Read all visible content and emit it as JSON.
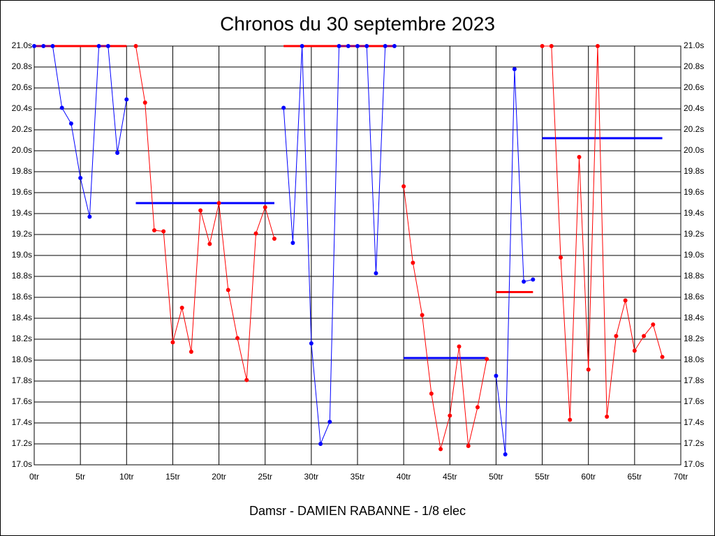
{
  "chart_data": {
    "type": "line",
    "title": "Chronos du 30 septembre 2023",
    "subtitle": "Damsr - DAMIEN RABANNE - 1/8 elec",
    "xlim": [
      0,
      70
    ],
    "ylim": [
      17.0,
      21.0
    ],
    "xticks": [
      {
        "value": 0,
        "label": "0tr"
      },
      {
        "value": 5,
        "label": "5tr"
      },
      {
        "value": 10,
        "label": "10tr"
      },
      {
        "value": 15,
        "label": "15tr"
      },
      {
        "value": 20,
        "label": "20tr"
      },
      {
        "value": 25,
        "label": "25tr"
      },
      {
        "value": 30,
        "label": "30tr"
      },
      {
        "value": 35,
        "label": "35tr"
      },
      {
        "value": 40,
        "label": "40tr"
      },
      {
        "value": 45,
        "label": "45tr"
      },
      {
        "value": 50,
        "label": "50tr"
      },
      {
        "value": 55,
        "label": "55tr"
      },
      {
        "value": 60,
        "label": "60tr"
      },
      {
        "value": 65,
        "label": "65tr"
      },
      {
        "value": 70,
        "label": "70tr"
      }
    ],
    "yticks": [
      {
        "value": 17.0,
        "label": "17.0s"
      },
      {
        "value": 17.2,
        "label": "17.2s"
      },
      {
        "value": 17.4,
        "label": "17.4s"
      },
      {
        "value": 17.6,
        "label": "17.6s"
      },
      {
        "value": 17.8,
        "label": "17.8s"
      },
      {
        "value": 18.0,
        "label": "18.0s"
      },
      {
        "value": 18.2,
        "label": "18.2s"
      },
      {
        "value": 18.4,
        "label": "18.4s"
      },
      {
        "value": 18.6,
        "label": "18.6s"
      },
      {
        "value": 18.8,
        "label": "18.8s"
      },
      {
        "value": 19.0,
        "label": "19.0s"
      },
      {
        "value": 19.2,
        "label": "19.2s"
      },
      {
        "value": 19.4,
        "label": "19.4s"
      },
      {
        "value": 19.6,
        "label": "19.6s"
      },
      {
        "value": 19.8,
        "label": "19.8s"
      },
      {
        "value": 20.0,
        "label": "20.0s"
      },
      {
        "value": 20.2,
        "label": "20.2s"
      },
      {
        "value": 20.4,
        "label": "20.4s"
      },
      {
        "value": 20.6,
        "label": "20.6s"
      },
      {
        "value": 20.8,
        "label": "20.8s"
      },
      {
        "value": 21.0,
        "label": "21.0s"
      }
    ],
    "grid": true,
    "series": [
      {
        "color": "#0000ff",
        "average": 21.0,
        "average_color": "#ff0000",
        "x": [
          0,
          1,
          2,
          3,
          4,
          5,
          6,
          7,
          8,
          9,
          10
        ],
        "values": [
          21.0,
          21.0,
          21.0,
          20.41,
          20.26,
          19.74,
          19.37,
          21.0,
          21.0,
          19.98,
          20.49
        ]
      },
      {
        "color": "#ff0000",
        "average": 19.5,
        "average_color": "#0000ff",
        "x": [
          11,
          12,
          13,
          14,
          15,
          16,
          17,
          18,
          19,
          20,
          21,
          22,
          23,
          24,
          25,
          26
        ],
        "values": [
          21.0,
          20.46,
          19.24,
          19.23,
          18.17,
          18.5,
          18.08,
          19.43,
          19.11,
          19.5,
          18.67,
          18.21,
          17.81,
          19.21,
          19.46,
          19.16
        ]
      },
      {
        "color": "#0000ff",
        "average": 21.0,
        "average_color": "#ff0000",
        "x": [
          27,
          28,
          29,
          30,
          31,
          32,
          33,
          34,
          35,
          36,
          37,
          38,
          39
        ],
        "values": [
          20.41,
          19.12,
          21.0,
          18.16,
          17.2,
          17.41,
          21.0,
          21.0,
          21.0,
          21.0,
          18.83,
          21.0,
          21.0
        ]
      },
      {
        "color": "#ff0000",
        "average": 18.02,
        "average_color": "#0000ff",
        "x": [
          40,
          41,
          42,
          43,
          44,
          45,
          46,
          47,
          48,
          49
        ],
        "values": [
          19.66,
          18.93,
          18.43,
          17.68,
          17.15,
          17.47,
          18.13,
          17.18,
          17.55,
          18.01
        ]
      },
      {
        "color": "#0000ff",
        "average": 18.65,
        "average_color": "#ff0000",
        "x": [
          50,
          51,
          52,
          53,
          54
        ],
        "values": [
          17.85,
          17.1,
          20.78,
          18.75,
          18.77
        ]
      },
      {
        "color": "#ff0000",
        "average": 20.12,
        "average_color": "#0000ff",
        "x": [
          55,
          56,
          57,
          58,
          59,
          60,
          61,
          62,
          63,
          64,
          65,
          66,
          67,
          68
        ],
        "values": [
          21.0,
          21.0,
          18.98,
          17.43,
          19.94,
          17.91,
          21.0,
          17.46,
          18.23,
          18.57,
          18.09,
          18.23,
          18.34,
          18.03
        ]
      }
    ]
  }
}
